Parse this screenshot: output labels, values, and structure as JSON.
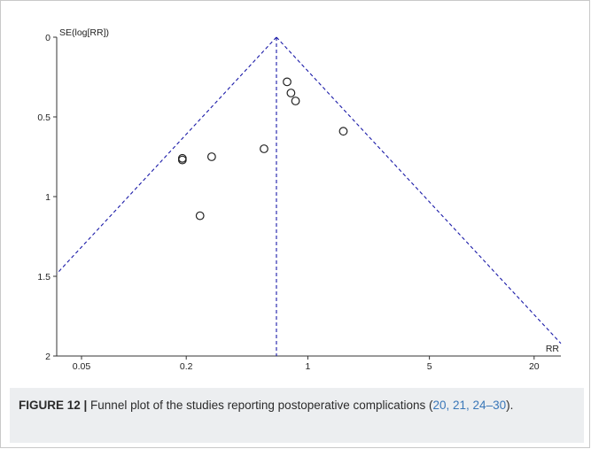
{
  "chart_data": {
    "type": "scatter",
    "subtype": "funnel plot",
    "x_label": "RR",
    "y_label": "SE(log[RR])",
    "x_scale": "log",
    "y_axis_inverted": true,
    "x_ticks": [
      "0.05",
      "0.2",
      "1",
      "5",
      "20"
    ],
    "x_tick_values": [
      0.05,
      0.2,
      1,
      5,
      20
    ],
    "y_ticks": [
      "0",
      "0.5",
      "1",
      "1.5",
      "2"
    ],
    "y_tick_values": [
      0,
      0.5,
      1,
      1.5,
      2
    ],
    "xlim": [
      0.036,
      28.5
    ],
    "ylim": [
      0,
      2
    ],
    "pooled_rr": 0.66,
    "funnel_line_color": "#1a1aa8",
    "points": [
      {
        "x": 0.76,
        "y": 0.28
      },
      {
        "x": 0.8,
        "y": 0.35
      },
      {
        "x": 0.85,
        "y": 0.4
      },
      {
        "x": 1.6,
        "y": 0.59
      },
      {
        "x": 0.56,
        "y": 0.7
      },
      {
        "x": 0.28,
        "y": 0.75
      },
      {
        "x": 0.19,
        "y": 0.76
      },
      {
        "x": 0.19,
        "y": 0.77
      },
      {
        "x": 0.24,
        "y": 1.12
      }
    ]
  },
  "caption": {
    "label": "FIGURE 12 |",
    "text": " Funnel plot of the studies reporting postoperative complications (",
    "refs": "20, 21, 24–30",
    "end": ")."
  }
}
